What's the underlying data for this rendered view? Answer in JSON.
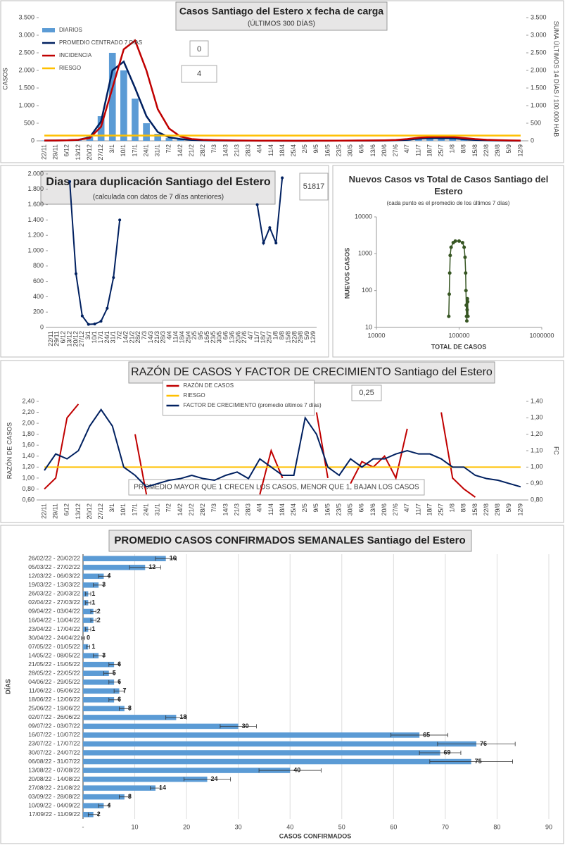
{
  "chart_data": [
    {
      "type": "combo",
      "title": "Casos Santiago del Estero x fecha de carga",
      "subtitle": "(ÚLTIMOS 300 DÍAS)",
      "ylabel": "CASOS",
      "y2label": "SUMA ÚLTIMOS 14 DÍAS / 100.000 HAB",
      "annotations": [
        "0",
        "4"
      ],
      "legend": "upper left",
      "categories": [
        "22/11",
        "29/11",
        "6/12",
        "13/12",
        "20/12",
        "27/12",
        "3/1",
        "10/1",
        "17/1",
        "24/1",
        "31/1",
        "7/2",
        "14/2",
        "21/2",
        "28/2",
        "7/3",
        "14/3",
        "21/3",
        "28/3",
        "4/4",
        "11/4",
        "18/4",
        "25/4",
        "2/5",
        "9/5",
        "16/5",
        "23/5",
        "30/5",
        "6/6",
        "13/6",
        "20/6",
        "27/6",
        "4/7",
        "11/7",
        "18/7",
        "25/7",
        "1/8",
        "8/8",
        "15/8",
        "22/8",
        "29/8",
        "5/9",
        "12/9"
      ],
      "ylim": [
        0,
        3500
      ],
      "yticks": [
        0,
        500,
        {
          "value": 1000,
          "label": "1.000"
        },
        {
          "value": 1500,
          "label": "1.500"
        },
        {
          "value": 2000,
          "label": "2.000"
        },
        {
          "value": 2500,
          "label": "2.500"
        },
        {
          "value": 3000,
          "label": "3.000"
        },
        {
          "value": 3500,
          "label": "3.500"
        }
      ],
      "y2lim": [
        0,
        3500
      ],
      "y2ticks": [
        0,
        500,
        {
          "value": 1000,
          "label": "1.000"
        },
        {
          "value": 1500,
          "label": "1.500"
        },
        {
          "value": 2000,
          "label": "2.000"
        },
        {
          "value": 2500,
          "label": "2.500"
        },
        {
          "value": 3000,
          "label": "3.000"
        },
        {
          "value": 3500,
          "label": "3.500"
        }
      ],
      "series": [
        {
          "name": "DIARIOS",
          "type": "bar",
          "color": "#5b9bd5",
          "values": [
            10,
            10,
            15,
            30,
            120,
            700,
            2500,
            2000,
            1200,
            500,
            200,
            80,
            40,
            20,
            12,
            8,
            6,
            5,
            4,
            3,
            2,
            1,
            1,
            1,
            2,
            3,
            4,
            5,
            6,
            6,
            8,
            18,
            30,
            65,
            76,
            69,
            75,
            40,
            24,
            14,
            8,
            4,
            2
          ]
        },
        {
          "name": "PROMEDIO CENTRADO 7 DÍAS",
          "type": "line",
          "color": "#002060",
          "values": [
            8,
            10,
            14,
            28,
            100,
            550,
            2000,
            2250,
            1500,
            700,
            250,
            100,
            50,
            25,
            15,
            10,
            7,
            5,
            4,
            3,
            2,
            1,
            1,
            1,
            2,
            3,
            4,
            5,
            6,
            6,
            8,
            16,
            28,
            60,
            75,
            70,
            72,
            42,
            25,
            15,
            9,
            5,
            3
          ]
        },
        {
          "name": "INCIDENCIA",
          "type": "line",
          "axis": "y2",
          "color": "#c00000",
          "values": [
            10,
            10,
            15,
            30,
            80,
            400,
            1500,
            2600,
            2850,
            2000,
            900,
            350,
            120,
            50,
            30,
            20,
            15,
            10,
            8,
            6,
            5,
            4,
            3,
            3,
            4,
            5,
            6,
            8,
            10,
            12,
            15,
            25,
            50,
            90,
            110,
            115,
            110,
            80,
            50,
            30,
            20,
            12,
            8
          ]
        },
        {
          "name": "RIESGO",
          "type": "line",
          "axis": "y2",
          "color": "#ffc000",
          "values": [
            150,
            150,
            150,
            150,
            150,
            150,
            150,
            150,
            150,
            150,
            150,
            150,
            150,
            150,
            150,
            150,
            150,
            150,
            150,
            150,
            150,
            150,
            150,
            150,
            150,
            150,
            150,
            150,
            150,
            150,
            150,
            150,
            150,
            150,
            150,
            150,
            150,
            150,
            150,
            150,
            150,
            150,
            150
          ]
        }
      ]
    },
    {
      "type": "line",
      "title": "Dias para duplicación Santiago del Estero",
      "subtitle": "(calculada con datos de 7 días anteriores)",
      "annotations": [
        "51817"
      ],
      "categories": [
        "22/11",
        "29/11",
        "6/12",
        "13/12",
        "20/12",
        "27/12",
        "3/1",
        "10/1",
        "17/1",
        "24/1",
        "31/1",
        "7/2",
        "14/2",
        "21/2",
        "28/2",
        "7/3",
        "14/3",
        "21/3",
        "28/3",
        "4/4",
        "11/4",
        "18/4",
        "25/4",
        "2/5",
        "9/5",
        "16/5",
        "23/5",
        "30/5",
        "6/6",
        "13/6",
        "20/6",
        "27/6",
        "4/7",
        "11/7",
        "18/7",
        "25/7",
        "1/8",
        "8/8",
        "15/8",
        "22/8",
        "29/8",
        "5/9",
        "12/9"
      ],
      "ylim": [
        0,
        2000
      ],
      "yticks": [
        0,
        200,
        400,
        600,
        800,
        {
          "value": 1000,
          "label": "1.000"
        },
        {
          "value": 1200,
          "label": "1.200"
        },
        {
          "value": 1400,
          "label": "1.400"
        },
        {
          "value": 1600,
          "label": "1.600"
        },
        {
          "value": 1800,
          "label": "1.800"
        },
        {
          "value": 2000,
          "label": "2.000"
        }
      ],
      "series": [
        {
          "color": "#002060",
          "values": [
            null,
            null,
            null,
            1900,
            700,
            150,
            40,
            45,
            80,
            250,
            650,
            1400,
            null,
            null,
            null,
            null,
            null,
            null,
            null,
            null,
            null,
            null,
            null,
            null,
            null,
            null,
            null,
            null,
            null,
            null,
            null,
            null,
            null,
            1600,
            1100,
            1300,
            1100,
            1950,
            null,
            null,
            null,
            null,
            null
          ]
        }
      ]
    },
    {
      "type": "scatter",
      "title": "Nuevos Casos vs Total de Casos Santiago del Estero",
      "subtitle": "(cada punto es el promedio de los últimos 7 días)",
      "xlabel": "TOTAL DE CASOS",
      "ylabel": "NUEVOS CASOS",
      "log": true,
      "color": "#375623",
      "xlim": [
        10000,
        1000000
      ],
      "xticks": [
        10000,
        100000,
        1000000
      ],
      "ylim": [
        10,
        10000
      ],
      "yticks": [
        10,
        100,
        1000,
        10000
      ],
      "x": [
        75000,
        76000,
        77000,
        78000,
        80000,
        85000,
        90000,
        100000,
        110000,
        115000,
        118000,
        120000,
        121000,
        122000,
        123000,
        124000,
        125000,
        126000,
        127000,
        128000
      ],
      "values": [
        20,
        80,
        300,
        900,
        1500,
        2000,
        2200,
        2200,
        2000,
        1500,
        800,
        300,
        100,
        40,
        20,
        15,
        30,
        60,
        50,
        20
      ]
    },
    {
      "type": "line",
      "title": "RAZÓN DE CASOS Y FACTOR DE CRECIMIENTO Santiago del Estero",
      "ylabel": "RAZÓN DE CASOS",
      "y2label": "FC",
      "annotations": [
        "0,25",
        "PROMEDIO MAYOR QUE 1 CRECEN LOS CASOS, MENOR QUE 1, BAJAN LOS CASOS"
      ],
      "legend": "upper center",
      "categories": [
        "22/11",
        "29/11",
        "6/12",
        "13/12",
        "20/12",
        "27/12",
        "3/1",
        "10/1",
        "17/1",
        "24/1",
        "31/1",
        "7/2",
        "14/2",
        "21/2",
        "28/2",
        "7/3",
        "14/3",
        "21/3",
        "28/3",
        "4/4",
        "11/4",
        "18/4",
        "25/4",
        "2/5",
        "9/5",
        "16/5",
        "23/5",
        "30/5",
        "6/6",
        "13/6",
        "20/6",
        "27/6",
        "4/7",
        "11/7",
        "18/7",
        "25/7",
        "1/8",
        "8/8",
        "15/8",
        "22/8",
        "29/8",
        "5/9",
        "12/9"
      ],
      "ylim": [
        0.6,
        2.4
      ],
      "yticks": [
        {
          "value": 0.6,
          "label": "0,60"
        },
        {
          "value": 0.8,
          "label": "0,80"
        },
        {
          "value": 1,
          "label": "1,00"
        },
        {
          "value": 1.2,
          "label": "1,20"
        },
        {
          "value": 1.4,
          "label": "1,40"
        },
        {
          "value": 1.6,
          "label": "1,60"
        },
        {
          "value": 1.8,
          "label": "1,80"
        },
        {
          "value": 2,
          "label": "2,00"
        },
        {
          "value": 2.2,
          "label": "2,20"
        },
        {
          "value": 2.4,
          "label": "2,40"
        }
      ],
      "y2lim": [
        0.8,
        1.4
      ],
      "y2ticks": [
        {
          "value": 0.8,
          "label": "0,80"
        },
        {
          "value": 0.9,
          "label": "0,90"
        },
        {
          "value": 1,
          "label": "1,00"
        },
        {
          "value": 1.1,
          "label": "1,10"
        },
        {
          "value": 1.2,
          "label": "1,20"
        },
        {
          "value": 1.3,
          "label": "1,30"
        },
        {
          "value": 1.4,
          "label": "1,40"
        }
      ],
      "series": [
        {
          "name": "RAZÓN DE CASOS",
          "color": "#c00000",
          "values": [
            0.8,
            1.0,
            2.1,
            2.35,
            null,
            null,
            null,
            null,
            1.8,
            0.7,
            null,
            null,
            null,
            null,
            null,
            null,
            null,
            null,
            null,
            0.7,
            1.5,
            1.0,
            null,
            null,
            2.2,
            1.0,
            null,
            0.9,
            1.3,
            1.2,
            1.4,
            1.0,
            1.9,
            null,
            null,
            2.2,
            1.0,
            0.8,
            0.65,
            null,
            null,
            null,
            null
          ]
        },
        {
          "name": "RIESGO",
          "color": "#ffc000",
          "values": [
            1.2,
            1.2,
            1.2,
            1.2,
            1.2,
            1.2,
            1.2,
            1.2,
            1.2,
            1.2,
            1.2,
            1.2,
            1.2,
            1.2,
            1.2,
            1.2,
            1.2,
            1.2,
            1.2,
            1.2,
            1.2,
            1.2,
            1.2,
            1.2,
            1.2,
            1.2,
            1.2,
            1.2,
            1.2,
            1.2,
            1.2,
            1.2,
            1.2,
            1.2,
            1.2,
            1.2,
            1.2,
            1.2,
            1.2,
            1.2,
            1.2,
            1.2,
            1.2
          ]
        },
        {
          "name": "FACTOR DE CRECIMIENTO (promedio últimos 7 días)",
          "axis": "y2",
          "color": "#002060",
          "values": [
            0.98,
            1.08,
            1.05,
            1.1,
            1.25,
            1.35,
            1.25,
            1.0,
            0.95,
            0.88,
            0.9,
            0.92,
            0.93,
            0.95,
            0.93,
            0.92,
            0.95,
            0.97,
            0.93,
            1.05,
            1.0,
            0.95,
            0.95,
            1.3,
            1.2,
            1.0,
            0.95,
            1.05,
            1.0,
            1.05,
            1.05,
            1.08,
            1.1,
            1.08,
            1.08,
            1.05,
            1.0,
            1.0,
            0.95,
            0.93,
            0.92,
            0.9,
            0.88
          ]
        }
      ]
    },
    {
      "type": "barh",
      "title": "PROMEDIO CASOS CONFIRMADOS SEMANALES Santiago del Estero",
      "xlabel": "CASOS CONFIRMADOS",
      "ylabel": "DÍAS",
      "grid": true,
      "color": "#5b9bd5",
      "categories": [
        "26/02/22 - 20/02/22",
        "05/03/22 - 27/02/22",
        "12/03/22 - 06/03/22",
        "19/03/22 - 13/03/22",
        "26/03/22 - 20/03/22",
        "02/04/22 - 27/03/22",
        "09/04/22 - 03/04/22",
        "16/04/22 - 10/04/22",
        "23/04/22 - 17/04/22",
        "30/04/22 - 24/04/22",
        "07/05/22 - 01/05/22",
        "14/05/22 - 08/05/22",
        "21/05/22 - 15/05/22",
        "28/05/22 - 22/05/22",
        "04/06/22 - 29/05/22",
        "11/06/22 - 05/06/22",
        "18/06/22 - 12/06/22",
        "25/06/22 - 19/06/22",
        "02/07/22 - 26/06/22",
        "09/07/22 - 03/07/22",
        "16/07/22 - 10/07/22",
        "23/07/22 - 17/07/22",
        "30/07/22 - 24/07/22",
        "06/08/22 - 31/07/22",
        "13/08/22 - 07/08/22",
        "20/08/22 - 14/08/22",
        "27/08/22 - 21/08/22",
        "03/09/22 - 28/08/22",
        "10/09/22 - 04/09/22",
        "17/09/22 - 11/09/22"
      ],
      "values": [
        16,
        12,
        4,
        3,
        1,
        1,
        2,
        2,
        1,
        0,
        1,
        3,
        6,
        5,
        6,
        7,
        6,
        8,
        18,
        30,
        65,
        76,
        69,
        75,
        40,
        24,
        14,
        8,
        4,
        2
      ],
      "errors": [
        2,
        3,
        1,
        1,
        0.5,
        0.5,
        0.5,
        0.5,
        0.5,
        0.3,
        0.3,
        1,
        1,
        1,
        1,
        1,
        1,
        1,
        2,
        3.5,
        5.5,
        7.5,
        4,
        8,
        6,
        4.5,
        1,
        1,
        1,
        1
      ],
      "xlim": [
        0,
        90
      ],
      "xticks": [
        {
          "value": 0,
          "label": "-"
        },
        10,
        20,
        30,
        40,
        50,
        60,
        70,
        80,
        90
      ]
    }
  ]
}
